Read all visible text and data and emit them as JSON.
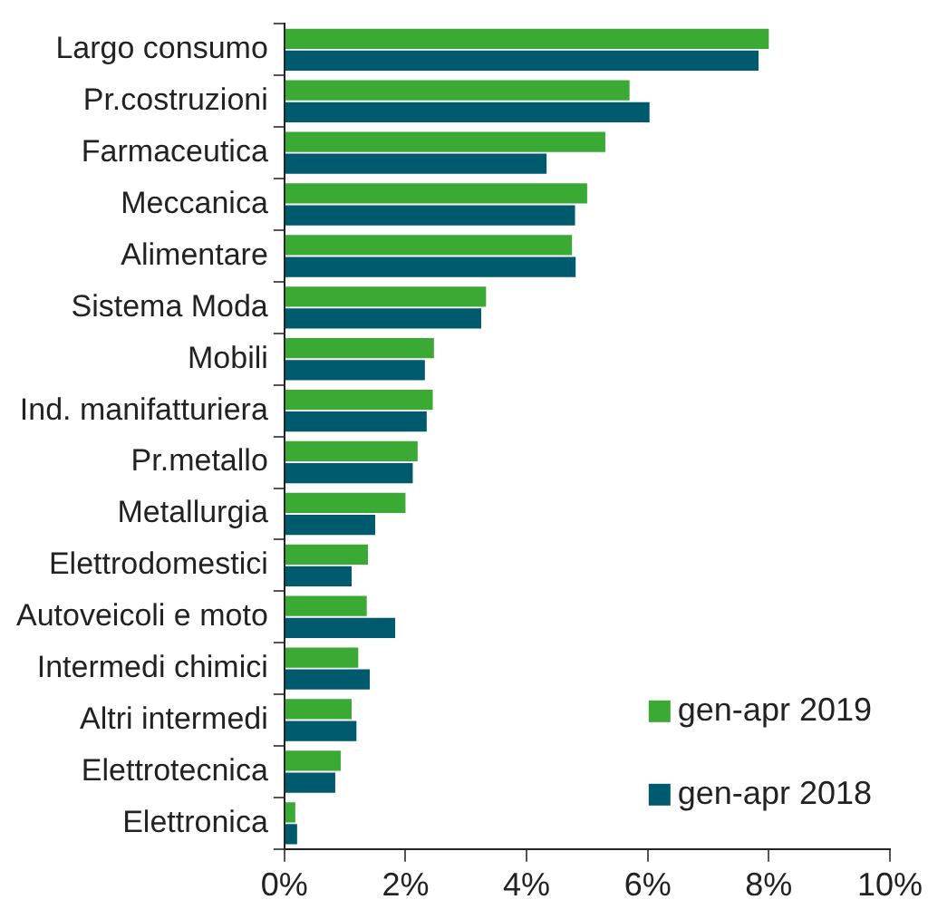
{
  "chart_data": {
    "type": "bar",
    "orientation": "horizontal",
    "categories": [
      "Largo consumo",
      "Pr.costruzioni",
      "Farmaceutica",
      "Meccanica",
      "Alimentare",
      "Sistema Moda",
      "Mobili",
      "Ind. manifatturiera",
      "Pr.metallo",
      "Metallurgia",
      "Elettrodomestici",
      "Autoveicoli e moto",
      "Intermedi chimici",
      "Altri intermedi",
      "Elettrotecnica",
      "Elettronica"
    ],
    "series": [
      {
        "name": "gen-apr 2019",
        "color": "#3aaa35",
        "values": [
          8.0,
          5.7,
          5.3,
          5.0,
          4.75,
          3.33,
          2.47,
          2.45,
          2.2,
          2.0,
          1.38,
          1.36,
          1.22,
          1.11,
          0.93,
          0.18
        ]
      },
      {
        "name": "gen-apr 2018",
        "color": "#005a6e",
        "values": [
          7.83,
          6.03,
          4.33,
          4.8,
          4.81,
          3.25,
          2.32,
          2.35,
          2.12,
          1.5,
          1.11,
          1.83,
          1.41,
          1.19,
          0.84,
          0.21
        ]
      }
    ],
    "xlim": [
      0,
      10
    ],
    "xticks": [
      {
        "value": 0,
        "label": "0%"
      },
      {
        "value": 2,
        "label": "2%"
      },
      {
        "value": 4,
        "label": "4%"
      },
      {
        "value": 6,
        "label": "6%"
      },
      {
        "value": 8,
        "label": "8%"
      },
      {
        "value": 10,
        "label": "10%"
      }
    ],
    "grid": false,
    "legend": "bottom right"
  }
}
